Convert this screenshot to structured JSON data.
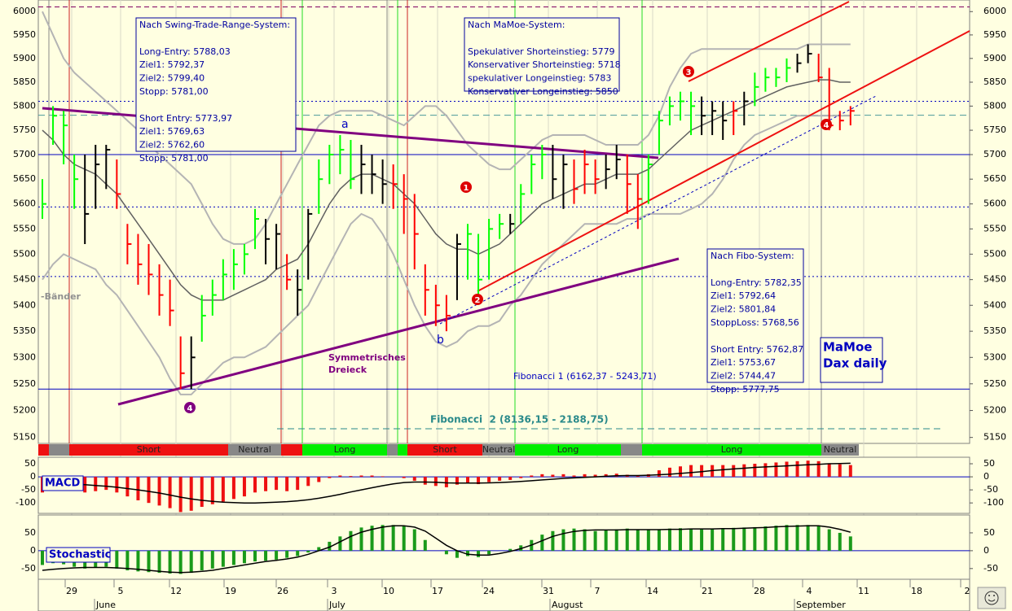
{
  "chart_data": [
    {
      "type": "ohlc",
      "log": true,
      "ylim": [
        5139,
        6025
      ],
      "yticks": [
        6000,
        5950,
        5900,
        5850,
        5800,
        5750,
        5700,
        5650,
        5600,
        5550,
        5500,
        5450,
        5400,
        5350,
        5300,
        5250,
        5200,
        5150
      ],
      "high": [
        5650,
        5800,
        5790,
        5700,
        5700,
        5720,
        5720,
        5690,
        5560,
        5540,
        5520,
        5480,
        5450,
        5340,
        5340,
        5420,
        5450,
        5490,
        5510,
        5520,
        5590,
        5570,
        5560,
        5500,
        5470,
        5590,
        5690,
        5720,
        5740,
        5730,
        5720,
        5700,
        5690,
        5680,
        5660,
        5620,
        5480,
        5440,
        5420,
        5540,
        5560,
        5540,
        5570,
        5580,
        5580,
        5640,
        5700,
        5720,
        5720,
        5700,
        5690,
        5710,
        5690,
        5700,
        5720,
        5700,
        5660,
        5700,
        5790,
        5820,
        5830,
        5830,
        5820,
        5810,
        5810,
        5810,
        5830,
        5870,
        5880,
        5880,
        5900,
        5910,
        5930,
        5910,
        5880,
        5790,
        5800
      ],
      "low": [
        5570,
        5720,
        5680,
        5590,
        5520,
        5590,
        5630,
        5590,
        5480,
        5440,
        5420,
        5380,
        5360,
        5240,
        5240,
        5330,
        5380,
        5410,
        5430,
        5460,
        5510,
        5480,
        5470,
        5430,
        5380,
        5450,
        5580,
        5640,
        5660,
        5630,
        5620,
        5620,
        5600,
        5590,
        5540,
        5470,
        5380,
        5360,
        5350,
        5410,
        5450,
        5420,
        5450,
        5530,
        5540,
        5560,
        5620,
        5650,
        5610,
        5590,
        5600,
        5620,
        5620,
        5630,
        5650,
        5580,
        5550,
        5600,
        5700,
        5760,
        5770,
        5740,
        5740,
        5740,
        5730,
        5740,
        5760,
        5800,
        5830,
        5840,
        5850,
        5870,
        5890,
        5850,
        5750,
        5750,
        5760
      ],
      "close": [
        5600,
        5780,
        5760,
        5650,
        5580,
        5680,
        5710,
        5620,
        5520,
        5480,
        5460,
        5420,
        5390,
        5270,
        5300,
        5380,
        5420,
        5460,
        5480,
        5500,
        5570,
        5530,
        5540,
        5450,
        5430,
        5580,
        5650,
        5700,
        5710,
        5650,
        5680,
        5660,
        5640,
        5640,
        5610,
        5540,
        5430,
        5400,
        5380,
        5520,
        5540,
        5450,
        5550,
        5560,
        5560,
        5620,
        5680,
        5700,
        5650,
        5680,
        5630,
        5680,
        5650,
        5670,
        5690,
        5640,
        5610,
        5680,
        5770,
        5800,
        5810,
        5800,
        5780,
        5790,
        5770,
        5790,
        5810,
        5840,
        5860,
        5860,
        5880,
        5890,
        5910,
        5860,
        5760,
        5770,
        5790
      ],
      "colors": [
        "lime",
        "lime",
        "lime",
        "lime",
        "black",
        "black",
        "black",
        "red",
        "red",
        "red",
        "red",
        "red",
        "red",
        "red",
        "black",
        "lime",
        "lime",
        "lime",
        "lime",
        "lime",
        "lime",
        "black",
        "black",
        "red",
        "black",
        "black",
        "lime",
        "lime",
        "lime",
        "lime",
        "black",
        "black",
        "black",
        "red",
        "red",
        "red",
        "red",
        "red",
        "red",
        "black",
        "lime",
        "lime",
        "lime",
        "lime",
        "black",
        "lime",
        "lime",
        "lime",
        "black",
        "black",
        "red",
        "red",
        "red",
        "black",
        "black",
        "red",
        "red",
        "lime",
        "lime",
        "lime",
        "lime",
        "lime",
        "black",
        "black",
        "black",
        "red",
        "black",
        "lime",
        "lime",
        "lime",
        "lime",
        "black",
        "black",
        "red",
        "red",
        "red",
        "red"
      ],
      "series": [
        {
          "color": "#606060",
          "values": [
            5750,
            5730,
            5700,
            5680,
            5670,
            5660,
            5640,
            5620,
            5590,
            5560,
            5530,
            5500,
            5470,
            5440,
            5420,
            5410,
            5410,
            5410,
            5420,
            5430,
            5440,
            5450,
            5470,
            5480,
            5490,
            5520,
            5560,
            5600,
            5630,
            5650,
            5660,
            5660,
            5650,
            5640,
            5620,
            5600,
            5570,
            5540,
            5520,
            5510,
            5510,
            5500,
            5510,
            5520,
            5540,
            5560,
            5580,
            5600,
            5610,
            5620,
            5630,
            5640,
            5640,
            5650,
            5660,
            5660,
            5660,
            5670,
            5690,
            5710,
            5730,
            5750,
            5760,
            5770,
            5780,
            5790,
            5800,
            5810,
            5820,
            5830,
            5840,
            5845,
            5850,
            5855,
            5855,
            5850,
            5850
          ]
        },
        {
          "color": "#b4b4b4",
          "values": [
            6000,
            5950,
            5900,
            5870,
            5850,
            5830,
            5810,
            5790,
            5770,
            5750,
            5720,
            5700,
            5680,
            5660,
            5640,
            5600,
            5560,
            5530,
            5520,
            5520,
            5530,
            5560,
            5600,
            5640,
            5680,
            5720,
            5760,
            5780,
            5790,
            5790,
            5790,
            5790,
            5780,
            5770,
            5760,
            5780,
            5800,
            5800,
            5780,
            5750,
            5720,
            5700,
            5680,
            5670,
            5670,
            5690,
            5710,
            5730,
            5740,
            5740,
            5740,
            5740,
            5730,
            5720,
            5720,
            5720,
            5720,
            5740,
            5780,
            5840,
            5880,
            5910,
            5920,
            5920,
            5920,
            5920,
            5920,
            5920,
            5920,
            5920,
            5920,
            5920,
            5930,
            5930,
            5930,
            5930,
            5930
          ]
        },
        {
          "color": "#b4b4b4",
          "values": [
            5450,
            5480,
            5500,
            5490,
            5480,
            5470,
            5440,
            5420,
            5390,
            5360,
            5330,
            5300,
            5260,
            5230,
            5230,
            5250,
            5270,
            5290,
            5300,
            5300,
            5310,
            5320,
            5340,
            5360,
            5380,
            5400,
            5440,
            5480,
            5520,
            5560,
            5580,
            5570,
            5540,
            5500,
            5450,
            5400,
            5360,
            5330,
            5320,
            5330,
            5350,
            5360,
            5360,
            5370,
            5400,
            5420,
            5450,
            5480,
            5500,
            5520,
            5540,
            5560,
            5560,
            5560,
            5560,
            5570,
            5570,
            5580,
            5580,
            5580,
            5580,
            5590,
            5600,
            5620,
            5650,
            5690,
            5720,
            5740,
            5750,
            5760,
            5770,
            5780,
            5780,
            5780,
            5780,
            5780,
            5780
          ]
        }
      ],
      "hlines": [
        {
          "value": 6010,
          "color": "#800060",
          "dash": "6 4"
        },
        {
          "value": 5810,
          "color": "#0000c0",
          "dash": "2 3"
        },
        {
          "value": 5781,
          "color": "#4a9a9a",
          "dash": "8 5"
        },
        {
          "value": 5700,
          "color": "#0000c0",
          "dash": "none"
        },
        {
          "value": 5594,
          "color": "#0000c0",
          "dash": "2 3"
        },
        {
          "value": 5456,
          "color": "#0000c0",
          "dash": "2 3"
        },
        {
          "value": 5240,
          "color": "#0000c0",
          "dash": "none"
        }
      ],
      "signals": [
        {
          "label": null,
          "color": "#ee1111"
        },
        {
          "label": null,
          "color": "#888888"
        },
        {
          "label": "Short",
          "color": "#ee1111"
        },
        {
          "label": "Neutral",
          "color": "#888888"
        },
        {
          "label": null,
          "color": "#ee1111"
        },
        {
          "label": "Long",
          "color": "#00ee00"
        },
        {
          "label": null,
          "color": "#888888"
        },
        {
          "label": null,
          "color": "#00ee00"
        },
        {
          "label": "Short",
          "color": "#ee1111"
        },
        {
          "label": "Neutral",
          "color": "#888888"
        },
        {
          "label": "Long",
          "color": "#00ee00"
        },
        {
          "label": null,
          "color": "#888888"
        },
        {
          "label": "Long",
          "color": "#00ee00"
        },
        {
          "label": "Neutral",
          "color": "#888888"
        }
      ],
      "boxes": [
        {
          "title": "Nach Swing-Trade-Range-System:",
          "groups": [
            [
              "Long-Entry: 5788,03",
              "Ziel1: 5792,37",
              "Ziel2: 5799,40",
              "Stopp: 5781,00"
            ],
            [
              "Short Entry: 5773,97",
              "Ziel1: 5769,63",
              "Ziel2: 5762,60",
              "Stopp: 5781,00"
            ]
          ]
        },
        {
          "title": "Nach MaMoe-System:",
          "groups": [
            [
              "Spekulativer Shorteinstieg: 5779",
              "Konservativer Shorteinstieg: 5718",
              "spekulativer Longeinstieg: 5783",
              "Konservativer Longeinstieg: 5850"
            ]
          ]
        },
        {
          "title": "Nach Fibo-System:",
          "groups": [
            [
              "Long-Entry: 5782,35",
              "Ziel1: 5792,64",
              "Ziel2: 5801,84",
              "StoppLoss: 5768,56"
            ],
            [
              "Short Entry: 5762,87",
              "Ziel1: 5753,67",
              "Ziel2: 5744,47",
              "Stopp: 5777,75"
            ]
          ]
        }
      ],
      "brand": [
        "MaMoe",
        "Dax daily"
      ],
      "annotations": [
        {
          "text": "a",
          "color": "#0000c0"
        },
        {
          "text": "b",
          "color": "#0000c0"
        },
        {
          "text": "Symmetrisches",
          "color": "#800080"
        },
        {
          "text": "Dreieck",
          "color": "#800080"
        },
        {
          "text": "Fibonacci 1 (6162,37 - 5243,71)",
          "color": "#0000c0"
        },
        {
          "text": "Fibonacci  2 (8136,15 - 2188,75)",
          "color": "#2a8a8a"
        },
        {
          "text": "-Bänder",
          "color": "#909090"
        }
      ],
      "markers": [
        {
          "text": "4",
          "color": "#800080"
        },
        {
          "text": "1",
          "color": "#dd0000"
        },
        {
          "text": "2",
          "color": "#dd0000"
        },
        {
          "text": "3",
          "color": "#dd0000"
        },
        {
          "text": "4",
          "color": "#dd0000"
        }
      ],
      "days": [
        "29",
        "5",
        "12",
        "19",
        "26",
        "3",
        "10",
        "17",
        "24",
        "31",
        "7",
        "14",
        "21",
        "28",
        "4",
        "11",
        "18",
        "2"
      ],
      "months": [
        "June",
        "July",
        "August",
        "September"
      ]
    },
    {
      "type": "bar",
      "label": "MACD",
      "color": "#ee1111",
      "ylim": [
        -140,
        75
      ],
      "yticks": [
        50,
        0,
        -50,
        -100
      ],
      "values": [
        -60,
        -45,
        -40,
        -50,
        -60,
        -55,
        -50,
        -60,
        -75,
        -90,
        -100,
        -110,
        -120,
        -135,
        -130,
        -115,
        -105,
        -95,
        -85,
        -75,
        -60,
        -55,
        -50,
        -55,
        -50,
        -35,
        -20,
        -5,
        5,
        3,
        5,
        5,
        2,
        0,
        -5,
        -15,
        -30,
        -35,
        -40,
        -30,
        -25,
        -28,
        -20,
        -15,
        -12,
        -5,
        5,
        10,
        8,
        10,
        5,
        10,
        8,
        10,
        12,
        8,
        5,
        10,
        25,
        35,
        40,
        45,
        45,
        45,
        45,
        45,
        48,
        50,
        52,
        55,
        58,
        60,
        62,
        60,
        52,
        48,
        45
      ],
      "signal": {
        "color": "#000000",
        "values": [
          -20,
          -22,
          -24,
          -27,
          -30,
          -33,
          -36,
          -40,
          -45,
          -50,
          -56,
          -62,
          -70,
          -78,
          -85,
          -90,
          -94,
          -97,
          -99,
          -100,
          -100,
          -99,
          -97,
          -95,
          -92,
          -88,
          -82,
          -75,
          -67,
          -58,
          -50,
          -42,
          -34,
          -27,
          -22,
          -20,
          -20,
          -21,
          -23,
          -24,
          -24,
          -24,
          -23,
          -22,
          -20,
          -18,
          -15,
          -12,
          -9,
          -6,
          -4,
          -2,
          0,
          2,
          4,
          5,
          5,
          6,
          8,
          10,
          13,
          16,
          20,
          24,
          27,
          30,
          33,
          36,
          38,
          40,
          42,
          44,
          46,
          48,
          50,
          51,
          52
        ]
      }
    },
    {
      "type": "bar",
      "label": "Stochastic",
      "color": "#1a9a1a",
      "ylim": [
        -80,
        100
      ],
      "yticks": [
        50,
        0,
        -50
      ],
      "values": [
        -40,
        -35,
        -38,
        -45,
        -50,
        -48,
        -45,
        -50,
        -55,
        -58,
        -60,
        -62,
        -64,
        -65,
        -62,
        -55,
        -50,
        -45,
        -40,
        -35,
        -30,
        -28,
        -25,
        -20,
        -15,
        -5,
        10,
        25,
        40,
        55,
        65,
        70,
        72,
        72,
        70,
        60,
        30,
        0,
        -10,
        -20,
        -15,
        -18,
        -10,
        0,
        5,
        15,
        30,
        45,
        55,
        60,
        62,
        60,
        55,
        58,
        60,
        62,
        60,
        58,
        60,
        62,
        63,
        62,
        60,
        62,
        63,
        64,
        65,
        66,
        68,
        70,
        72,
        72,
        72,
        70,
        60,
        50,
        40
      ],
      "signal": {
        "color": "#000000",
        "values": [
          -55,
          -52,
          -50,
          -48,
          -47,
          -47,
          -47,
          -48,
          -50,
          -52,
          -55,
          -58,
          -60,
          -61,
          -60,
          -58,
          -55,
          -50,
          -45,
          -40,
          -35,
          -30,
          -27,
          -23,
          -18,
          -10,
          0,
          10,
          25,
          40,
          52,
          60,
          66,
          70,
          70,
          66,
          55,
          35,
          15,
          0,
          -10,
          -12,
          -12,
          -8,
          -2,
          6,
          16,
          28,
          40,
          48,
          54,
          57,
          58,
          58,
          58,
          59,
          59,
          59,
          59,
          60,
          60,
          61,
          61,
          61,
          62,
          62,
          63,
          64,
          65,
          67,
          68,
          69,
          70,
          70,
          66,
          60,
          52
        ]
      }
    }
  ]
}
